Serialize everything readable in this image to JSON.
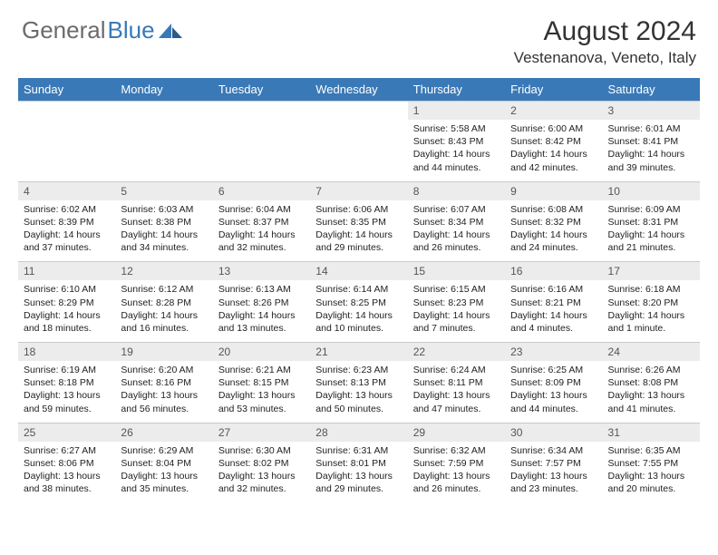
{
  "brand": {
    "part1": "General",
    "part2": "Blue"
  },
  "title": "August 2024",
  "location": "Vestenanova, Veneto, Italy",
  "theme": {
    "header_bg": "#3a79b7",
    "header_fg": "#ffffff",
    "daynum_bg": "#ececec",
    "border": "#c9c9c9",
    "text": "#222222",
    "logo_gray": "#6b6b6b",
    "logo_blue": "#3a79b7"
  },
  "day_headers": [
    "Sunday",
    "Monday",
    "Tuesday",
    "Wednesday",
    "Thursday",
    "Friday",
    "Saturday"
  ],
  "weeks": [
    [
      null,
      null,
      null,
      null,
      {
        "n": "1",
        "sr": "Sunrise: 5:58 AM",
        "ss": "Sunset: 8:43 PM",
        "dl": "Daylight: 14 hours and 44 minutes."
      },
      {
        "n": "2",
        "sr": "Sunrise: 6:00 AM",
        "ss": "Sunset: 8:42 PM",
        "dl": "Daylight: 14 hours and 42 minutes."
      },
      {
        "n": "3",
        "sr": "Sunrise: 6:01 AM",
        "ss": "Sunset: 8:41 PM",
        "dl": "Daylight: 14 hours and 39 minutes."
      }
    ],
    [
      {
        "n": "4",
        "sr": "Sunrise: 6:02 AM",
        "ss": "Sunset: 8:39 PM",
        "dl": "Daylight: 14 hours and 37 minutes."
      },
      {
        "n": "5",
        "sr": "Sunrise: 6:03 AM",
        "ss": "Sunset: 8:38 PM",
        "dl": "Daylight: 14 hours and 34 minutes."
      },
      {
        "n": "6",
        "sr": "Sunrise: 6:04 AM",
        "ss": "Sunset: 8:37 PM",
        "dl": "Daylight: 14 hours and 32 minutes."
      },
      {
        "n": "7",
        "sr": "Sunrise: 6:06 AM",
        "ss": "Sunset: 8:35 PM",
        "dl": "Daylight: 14 hours and 29 minutes."
      },
      {
        "n": "8",
        "sr": "Sunrise: 6:07 AM",
        "ss": "Sunset: 8:34 PM",
        "dl": "Daylight: 14 hours and 26 minutes."
      },
      {
        "n": "9",
        "sr": "Sunrise: 6:08 AM",
        "ss": "Sunset: 8:32 PM",
        "dl": "Daylight: 14 hours and 24 minutes."
      },
      {
        "n": "10",
        "sr": "Sunrise: 6:09 AM",
        "ss": "Sunset: 8:31 PM",
        "dl": "Daylight: 14 hours and 21 minutes."
      }
    ],
    [
      {
        "n": "11",
        "sr": "Sunrise: 6:10 AM",
        "ss": "Sunset: 8:29 PM",
        "dl": "Daylight: 14 hours and 18 minutes."
      },
      {
        "n": "12",
        "sr": "Sunrise: 6:12 AM",
        "ss": "Sunset: 8:28 PM",
        "dl": "Daylight: 14 hours and 16 minutes."
      },
      {
        "n": "13",
        "sr": "Sunrise: 6:13 AM",
        "ss": "Sunset: 8:26 PM",
        "dl": "Daylight: 14 hours and 13 minutes."
      },
      {
        "n": "14",
        "sr": "Sunrise: 6:14 AM",
        "ss": "Sunset: 8:25 PM",
        "dl": "Daylight: 14 hours and 10 minutes."
      },
      {
        "n": "15",
        "sr": "Sunrise: 6:15 AM",
        "ss": "Sunset: 8:23 PM",
        "dl": "Daylight: 14 hours and 7 minutes."
      },
      {
        "n": "16",
        "sr": "Sunrise: 6:16 AM",
        "ss": "Sunset: 8:21 PM",
        "dl": "Daylight: 14 hours and 4 minutes."
      },
      {
        "n": "17",
        "sr": "Sunrise: 6:18 AM",
        "ss": "Sunset: 8:20 PM",
        "dl": "Daylight: 14 hours and 1 minute."
      }
    ],
    [
      {
        "n": "18",
        "sr": "Sunrise: 6:19 AM",
        "ss": "Sunset: 8:18 PM",
        "dl": "Daylight: 13 hours and 59 minutes."
      },
      {
        "n": "19",
        "sr": "Sunrise: 6:20 AM",
        "ss": "Sunset: 8:16 PM",
        "dl": "Daylight: 13 hours and 56 minutes."
      },
      {
        "n": "20",
        "sr": "Sunrise: 6:21 AM",
        "ss": "Sunset: 8:15 PM",
        "dl": "Daylight: 13 hours and 53 minutes."
      },
      {
        "n": "21",
        "sr": "Sunrise: 6:23 AM",
        "ss": "Sunset: 8:13 PM",
        "dl": "Daylight: 13 hours and 50 minutes."
      },
      {
        "n": "22",
        "sr": "Sunrise: 6:24 AM",
        "ss": "Sunset: 8:11 PM",
        "dl": "Daylight: 13 hours and 47 minutes."
      },
      {
        "n": "23",
        "sr": "Sunrise: 6:25 AM",
        "ss": "Sunset: 8:09 PM",
        "dl": "Daylight: 13 hours and 44 minutes."
      },
      {
        "n": "24",
        "sr": "Sunrise: 6:26 AM",
        "ss": "Sunset: 8:08 PM",
        "dl": "Daylight: 13 hours and 41 minutes."
      }
    ],
    [
      {
        "n": "25",
        "sr": "Sunrise: 6:27 AM",
        "ss": "Sunset: 8:06 PM",
        "dl": "Daylight: 13 hours and 38 minutes."
      },
      {
        "n": "26",
        "sr": "Sunrise: 6:29 AM",
        "ss": "Sunset: 8:04 PM",
        "dl": "Daylight: 13 hours and 35 minutes."
      },
      {
        "n": "27",
        "sr": "Sunrise: 6:30 AM",
        "ss": "Sunset: 8:02 PM",
        "dl": "Daylight: 13 hours and 32 minutes."
      },
      {
        "n": "28",
        "sr": "Sunrise: 6:31 AM",
        "ss": "Sunset: 8:01 PM",
        "dl": "Daylight: 13 hours and 29 minutes."
      },
      {
        "n": "29",
        "sr": "Sunrise: 6:32 AM",
        "ss": "Sunset: 7:59 PM",
        "dl": "Daylight: 13 hours and 26 minutes."
      },
      {
        "n": "30",
        "sr": "Sunrise: 6:34 AM",
        "ss": "Sunset: 7:57 PM",
        "dl": "Daylight: 13 hours and 23 minutes."
      },
      {
        "n": "31",
        "sr": "Sunrise: 6:35 AM",
        "ss": "Sunset: 7:55 PM",
        "dl": "Daylight: 13 hours and 20 minutes."
      }
    ]
  ]
}
